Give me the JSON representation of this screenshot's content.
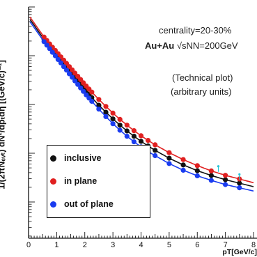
{
  "chart_data": {
    "type": "scatter",
    "annotations": {
      "centrality": "centrality=20-30%",
      "system_prefix": "Au+Au",
      "system_suffix": "√sNN=200GeV",
      "note1": "(Technical plot)",
      "note2": "(arbitrary units)"
    },
    "ylabel": "1/(2πNₑᵥₜ) dN²/dpₜdη [(GeV/c)⁻²]",
    "xlabel": "pT[GeV/c]",
    "xlim": [
      0,
      8
    ],
    "x_ticks": [
      "0",
      "1",
      "2",
      "3",
      "4",
      "5",
      "6",
      "7",
      "8"
    ],
    "y_scale": "log",
    "legend_position": "lower-left",
    "legend": [
      "inclusive",
      "in plane",
      "out of plane"
    ],
    "series": [
      {
        "name": "inclusive",
        "color": "#111111",
        "x": [
          0.55,
          0.65,
          0.75,
          0.85,
          0.95,
          1.05,
          1.15,
          1.25,
          1.35,
          1.45,
          1.55,
          1.65,
          1.75,
          1.85,
          1.95,
          2.05,
          2.15,
          2.25,
          2.5,
          2.75,
          3.0,
          3.25,
          3.5,
          3.75,
          4.0,
          4.25,
          4.5,
          5.0,
          5.5,
          6.0,
          6.5,
          7.0,
          7.5
        ],
        "y": [
          0.86,
          0.845,
          0.83,
          0.815,
          0.8,
          0.785,
          0.77,
          0.755,
          0.74,
          0.725,
          0.71,
          0.695,
          0.68,
          0.665,
          0.65,
          0.636,
          0.622,
          0.608,
          0.575,
          0.545,
          0.516,
          0.489,
          0.464,
          0.441,
          0.419,
          0.399,
          0.38,
          0.346,
          0.317,
          0.292,
          0.271,
          0.253,
          0.238
        ]
      },
      {
        "name": "in plane",
        "color": "#e02020",
        "x": [
          0.55,
          0.65,
          0.75,
          0.85,
          0.95,
          1.05,
          1.15,
          1.25,
          1.35,
          1.45,
          1.55,
          1.65,
          1.75,
          1.85,
          1.95,
          2.05,
          2.15,
          2.25,
          2.5,
          2.75,
          3.0,
          3.25,
          3.5,
          3.75,
          4.0,
          4.25,
          4.5,
          5.0,
          5.5,
          6.0,
          6.5,
          7.0,
          7.5
        ],
        "y": [
          0.87,
          0.855,
          0.84,
          0.826,
          0.812,
          0.798,
          0.784,
          0.77,
          0.756,
          0.742,
          0.728,
          0.714,
          0.7,
          0.686,
          0.672,
          0.658,
          0.645,
          0.632,
          0.6,
          0.57,
          0.541,
          0.514,
          0.489,
          0.465,
          0.443,
          0.423,
          0.404,
          0.37,
          0.34,
          0.314,
          0.291,
          0.272,
          0.256
        ]
      },
      {
        "name": "out of plane",
        "color": "#1a3cf0",
        "x": [
          0.55,
          0.65,
          0.75,
          0.85,
          0.95,
          1.05,
          1.15,
          1.25,
          1.35,
          1.45,
          1.55,
          1.65,
          1.75,
          1.85,
          1.95,
          2.05,
          2.15,
          2.25,
          2.5,
          2.75,
          3.0,
          3.25,
          3.5,
          3.75,
          4.0,
          4.25,
          4.5,
          5.0,
          5.5,
          6.0,
          6.5,
          7.0,
          7.5
        ],
        "y": [
          0.85,
          0.835,
          0.82,
          0.804,
          0.789,
          0.773,
          0.758,
          0.742,
          0.727,
          0.711,
          0.696,
          0.68,
          0.665,
          0.65,
          0.635,
          0.62,
          0.606,
          0.592,
          0.558,
          0.526,
          0.495,
          0.467,
          0.441,
          0.417,
          0.395,
          0.375,
          0.357,
          0.323,
          0.294,
          0.27,
          0.25,
          0.232,
          0.218
        ]
      }
    ]
  }
}
